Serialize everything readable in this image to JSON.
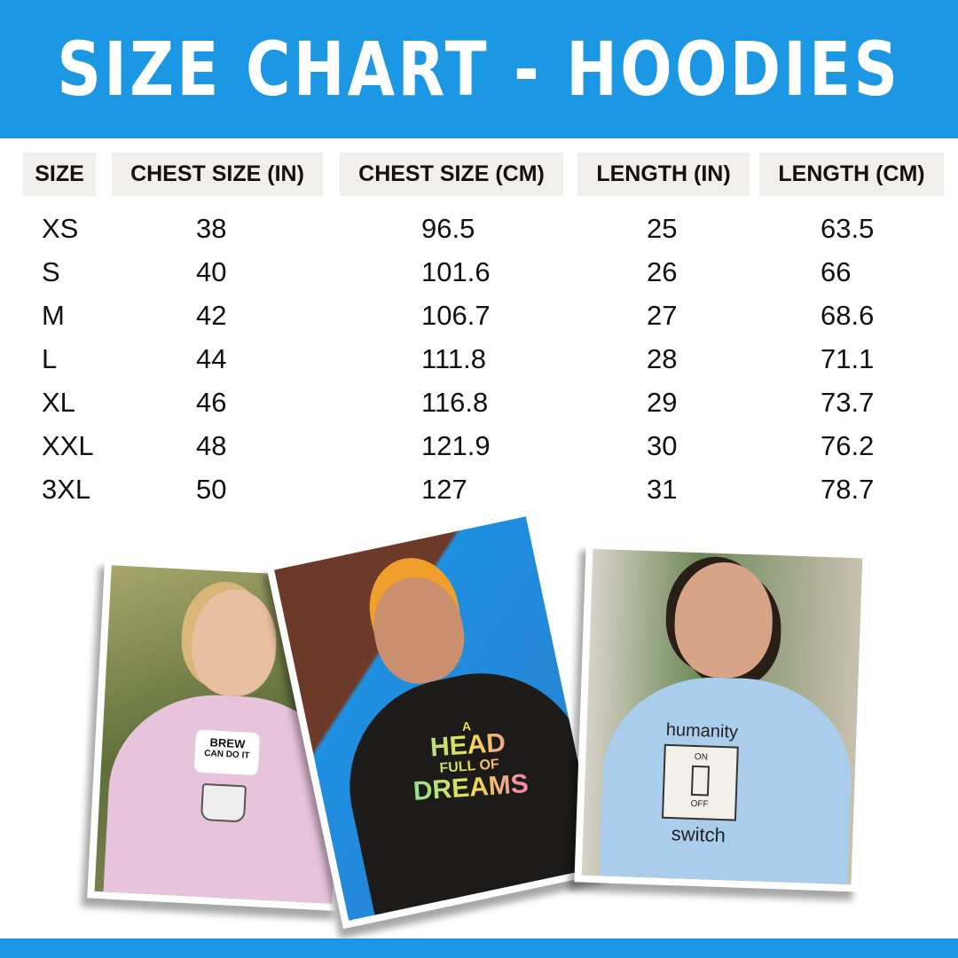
{
  "title": "SIZE CHART - HOODIES",
  "table": {
    "headers": [
      "SIZE",
      "CHEST SIZE (IN)",
      "CHEST SIZE (CM)",
      "LENGTH (IN)",
      "LENGTH (CM)"
    ],
    "rows": [
      [
        "XS",
        "38",
        "96.5",
        "25",
        "63.5"
      ],
      [
        "S",
        "40",
        "101.6",
        "26",
        "66"
      ],
      [
        "M",
        "42",
        "106.7",
        "27",
        "68.6"
      ],
      [
        "L",
        "44",
        "111.8",
        "28",
        "71.1"
      ],
      [
        "XL",
        "46",
        "116.8",
        "29",
        "73.7"
      ],
      [
        "XXL",
        "48",
        "121.9",
        "30",
        "76.2"
      ],
      [
        "3XL",
        "50",
        "127",
        "31",
        "78.7"
      ]
    ]
  },
  "photos": [
    {
      "hoodie_color": "#e8c3dc",
      "print": [
        "BREW",
        "CAN DO IT"
      ]
    },
    {
      "hoodie_color": "#1d1b1a",
      "print": [
        "A",
        "HEAD",
        "FULL OF",
        "DREAMS"
      ]
    },
    {
      "hoodie_color": "#a9cdea",
      "print": [
        "humanity",
        "ON",
        "OFF",
        "switch"
      ]
    }
  ],
  "colors": {
    "brand": "#1c97e3",
    "header_cell": "#f0efeb"
  }
}
